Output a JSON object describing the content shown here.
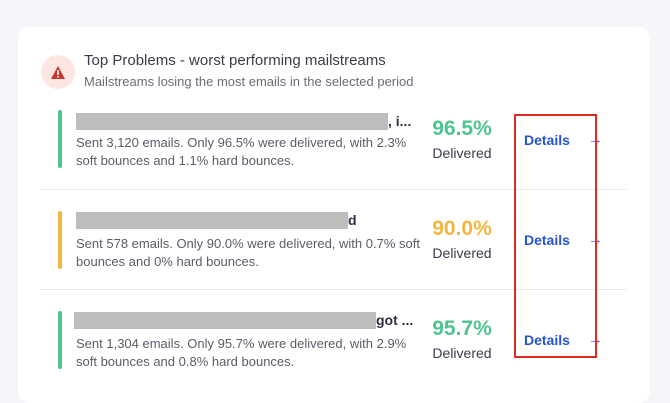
{
  "header": {
    "title": "Top Problems - worst performing mailstreams",
    "subtitle": "Mailstreams losing the most emails in the selected period"
  },
  "colors": {
    "green": "#4fc48f",
    "orange": "#f5b63f",
    "warning_red": "#c8352b"
  },
  "rows": [
    {
      "name_suffix": ", i...",
      "description": "Sent 3,120 emails. Only 96.5% were delivered, with 2.3% soft bounces and 1.1% hard bounces.",
      "percent": "96.5%",
      "delivered_label": "Delivered",
      "details_label": "Details",
      "status_color": "green"
    },
    {
      "name_suffix": "d",
      "description": "Sent 578 emails. Only 90.0% were delivered, with 0.7% soft bounces and 0% hard bounces.",
      "percent": "90.0%",
      "delivered_label": "Delivered",
      "details_label": "Details",
      "status_color": "orange"
    },
    {
      "name_suffix": "got ...",
      "description": "Sent 1,304 emails. Only 95.7% were delivered, with 2.9% soft bounces and 0.8% hard bounces.",
      "percent": "95.7%",
      "delivered_label": "Delivered",
      "details_label": "Details",
      "status_color": "green"
    }
  ]
}
